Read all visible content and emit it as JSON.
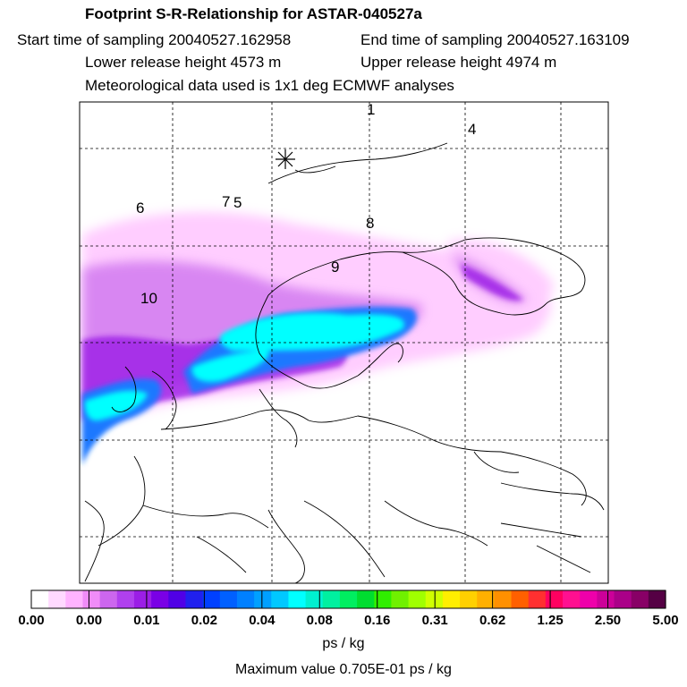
{
  "header": {
    "title": "Footprint S-R-Relationship for ASTAR-040527a",
    "start_time": "Start time of sampling 20040527.162958",
    "end_time": "End time of sampling 20040527.163109",
    "lower_height": "Lower release height 4573 m",
    "upper_height": "Upper release height 4974 m",
    "met_data": "Meteorological data used is 1x1 deg ECMWF analyses"
  },
  "map": {
    "trajectory_labels": [
      "6",
      "7",
      "5",
      "8",
      "9",
      "10",
      "4",
      "1"
    ],
    "receptor_icon": "asterisk-icon"
  },
  "legend": {
    "tick_labels": [
      "0.00",
      "0.00",
      "0.01",
      "0.02",
      "0.04",
      "0.08",
      "0.16",
      "0.31",
      "0.62",
      "1.25",
      "2.50",
      "5.00"
    ],
    "colors": [
      "#ffffff",
      "#ffd9ff",
      "#ffb3ff",
      "#f08cf8",
      "#cc66ee",
      "#b040ee",
      "#9b1ee6",
      "#7a00e6",
      "#5000e6",
      "#2020ee",
      "#0040ff",
      "#0060ff",
      "#0080ff",
      "#00a0ff",
      "#00c8ff",
      "#00ffff",
      "#00f0d0",
      "#00f0a0",
      "#00ee60",
      "#00dd30",
      "#30ee00",
      "#70f000",
      "#a0ff00",
      "#d0ff00",
      "#ffee00",
      "#ffd000",
      "#ffb000",
      "#ff9000",
      "#ff6000",
      "#ff3030",
      "#ff0060",
      "#ff1090",
      "#ee00aa",
      "#cc0099",
      "#aa0088",
      "#880066",
      "#550044"
    ],
    "units": "ps / kg",
    "max_value": "Maximum value  0.705E-01 ps / kg"
  }
}
